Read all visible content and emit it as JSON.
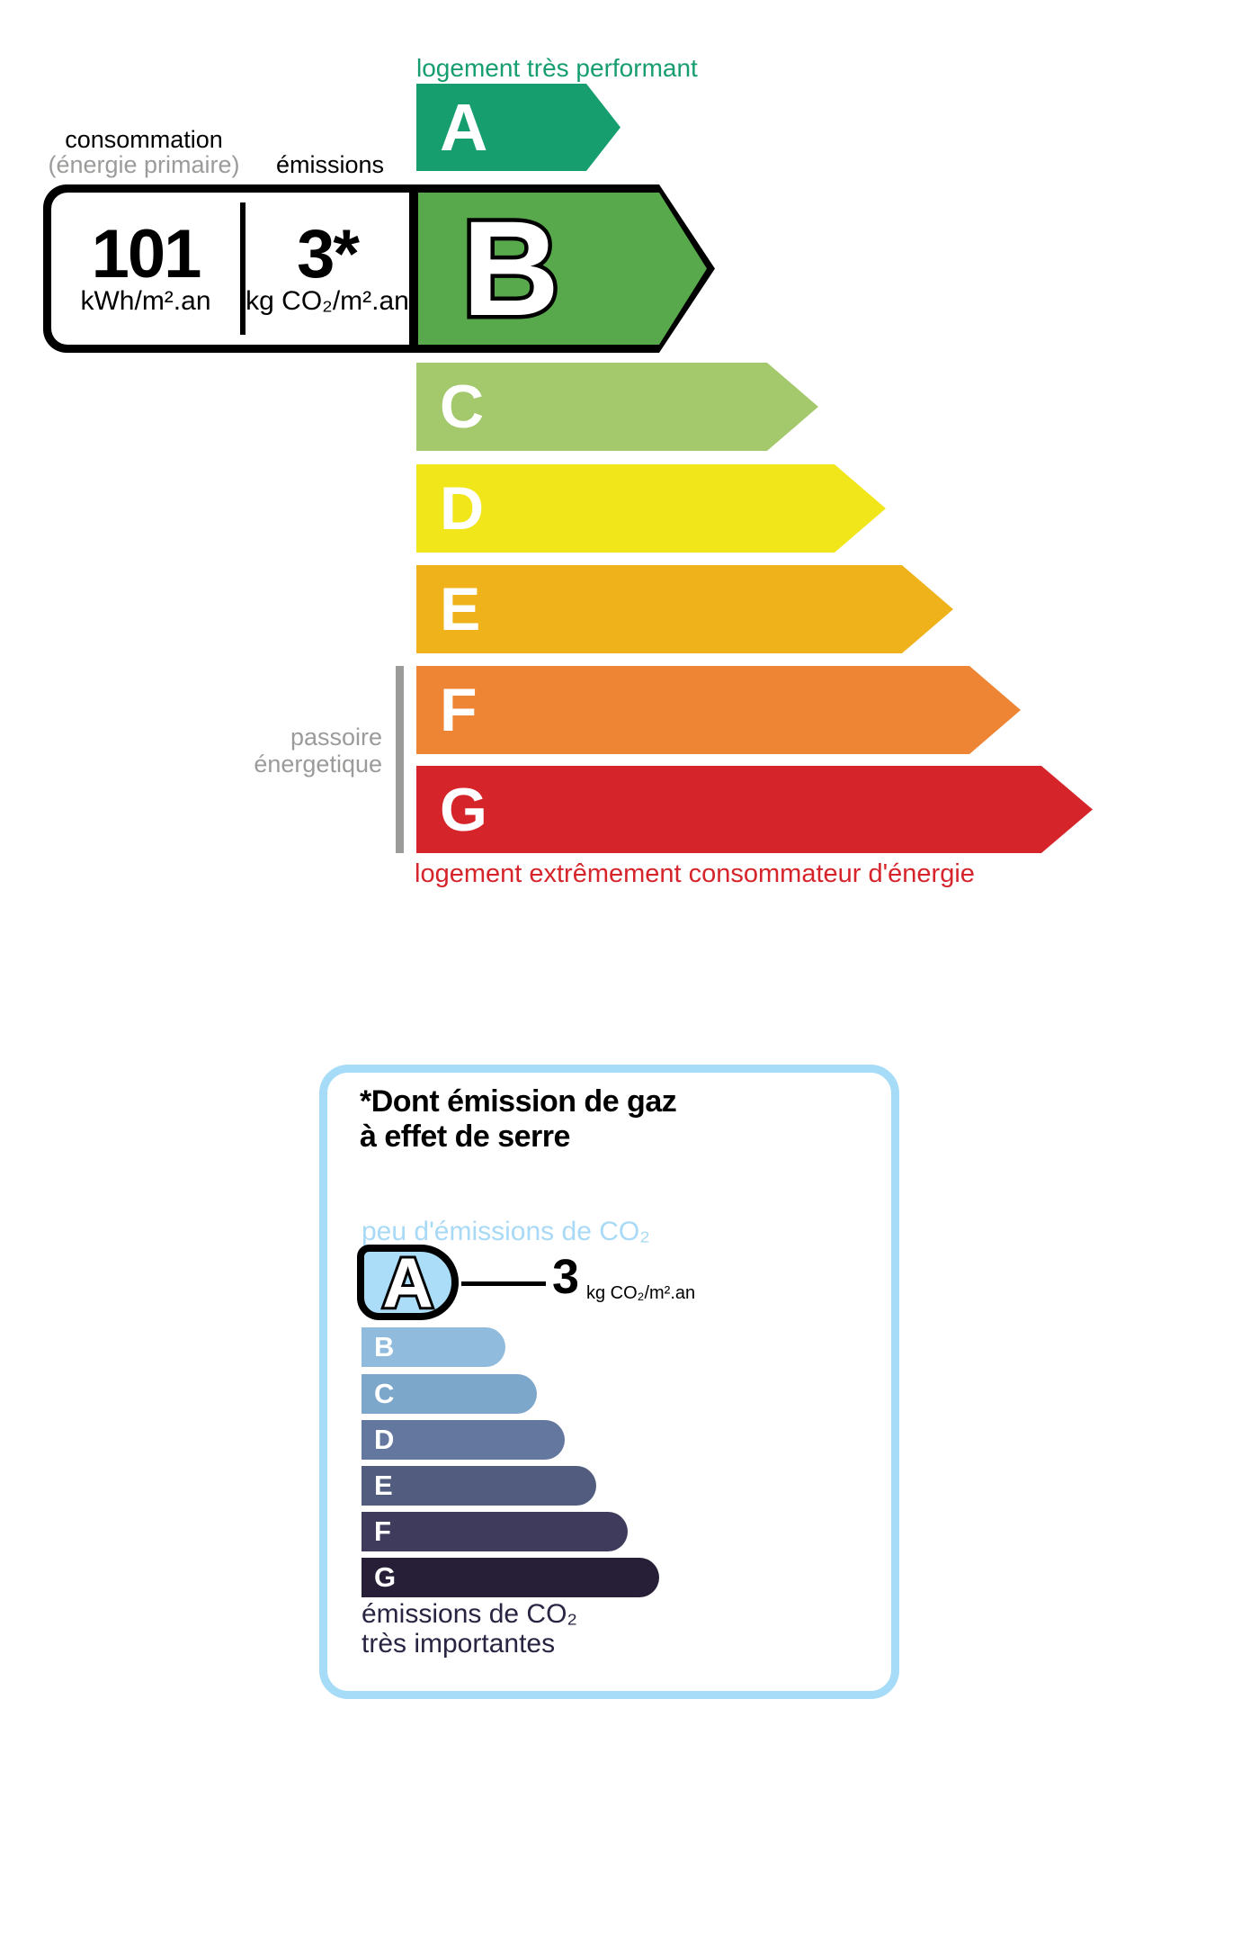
{
  "energy_scale": {
    "top_label": "logement très performant",
    "bottom_label": "logement extrêmement consommateur d'énergie",
    "sieve_label": {
      "line1": "passoire",
      "line2": "énergetique"
    },
    "headers": {
      "consumption": "consommation",
      "consumption_sub": "(énergie primaire)",
      "emissions": "émissions"
    },
    "values": {
      "consumption": "101",
      "consumption_unit": "kWh/m².an",
      "emissions": "3*",
      "emissions_unit": "kg CO₂/m².an"
    },
    "current_class": "B",
    "classes": [
      {
        "letter": "A",
        "color": "#169e6f"
      },
      {
        "letter": "B",
        "color": "#58a94c"
      },
      {
        "letter": "C",
        "color": "#a4c86c"
      },
      {
        "letter": "D",
        "color": "#f1e619"
      },
      {
        "letter": "E",
        "color": "#f0b21b"
      },
      {
        "letter": "F",
        "color": "#ed8535"
      },
      {
        "letter": "G",
        "color": "#d6242b"
      }
    ]
  },
  "co2_scale": {
    "title_line1": "*Dont émission de gaz",
    "title_line2": "à effet de serre",
    "low_label": "peu d'émissions de CO₂",
    "high_label_line1": "émissions de CO₂",
    "high_label_line2": "très importantes",
    "value": "3",
    "unit": "kg CO₂/m².an",
    "border_color": "#a6dcf8",
    "classes": [
      {
        "letter": "A",
        "color": "#abddf8"
      },
      {
        "letter": "B",
        "color": "#90bbdc"
      },
      {
        "letter": "C",
        "color": "#7da6cb"
      },
      {
        "letter": "D",
        "color": "#64789f"
      },
      {
        "letter": "E",
        "color": "#515c7f"
      },
      {
        "letter": "F",
        "color": "#3e3b5c"
      },
      {
        "letter": "G",
        "color": "#271f37"
      }
    ]
  }
}
